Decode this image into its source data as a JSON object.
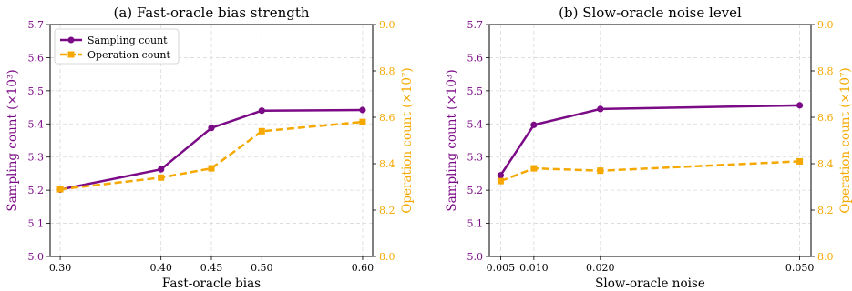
{
  "colors": {
    "sampling": "#7b0a86",
    "operation": "#f5a800"
  },
  "chart_data": [
    {
      "type": "line",
      "title": "(a) Fast-oracle bias strength",
      "xlabel": "Fast-oracle bias",
      "ylabel_left": "Sampling count (×10³)",
      "ylabel_right": "Operation count (×10⁷)",
      "x": [
        0.3,
        0.4,
        0.45,
        0.5,
        0.6
      ],
      "x_tick_labels": [
        "0.30",
        "0.40",
        "0.45",
        "0.50",
        "0.60"
      ],
      "xlim": [
        0.29,
        0.61
      ],
      "ylim_left": [
        5.0,
        5.7
      ],
      "ylim_right": [
        8.0,
        9.0
      ],
      "y_left_ticks": [
        "5.0",
        "5.1",
        "5.2",
        "5.3",
        "5.4",
        "5.5",
        "5.6",
        "5.7"
      ],
      "y_right_ticks": [
        "8.0",
        "8.2",
        "8.4",
        "8.6",
        "8.8",
        "9.0"
      ],
      "grid": true,
      "legend": "top-left",
      "series": [
        {
          "name": "Sampling count",
          "axis": "left",
          "marker": "circle",
          "style": "solid",
          "values": [
            5.202,
            5.263,
            5.388,
            5.44,
            5.442
          ]
        },
        {
          "name": "Operation count",
          "axis": "right",
          "marker": "square",
          "style": "dashed",
          "values": [
            8.29,
            8.34,
            8.38,
            8.54,
            8.58
          ]
        }
      ]
    },
    {
      "type": "line",
      "title": "(b) Slow-oracle noise level",
      "xlabel": "Slow-oracle noise",
      "ylabel_left": "Sampling count (×10³)",
      "ylabel_right": "Operation count (×10⁷)",
      "x": [
        0.005,
        0.01,
        0.02,
        0.05
      ],
      "x_tick_labels": [
        "0.005",
        "0.010",
        "0.020",
        "0.050"
      ],
      "xlim": [
        0.0033,
        0.0517
      ],
      "ylim_left": [
        5.0,
        5.7
      ],
      "ylim_right": [
        8.0,
        9.0
      ],
      "y_left_ticks": [
        "5.0",
        "5.1",
        "5.2",
        "5.3",
        "5.4",
        "5.5",
        "5.6",
        "5.7"
      ],
      "y_right_ticks": [
        "8.0",
        "8.2",
        "8.4",
        "8.6",
        "8.8",
        "9.0"
      ],
      "grid": true,
      "legend": "none",
      "series": [
        {
          "name": "Sampling count",
          "axis": "left",
          "marker": "circle",
          "style": "solid",
          "values": [
            5.245,
            5.397,
            5.445,
            5.456
          ]
        },
        {
          "name": "Operation count",
          "axis": "right",
          "marker": "square",
          "style": "dashed",
          "values": [
            8.325,
            8.38,
            8.37,
            8.41
          ]
        }
      ]
    }
  ]
}
